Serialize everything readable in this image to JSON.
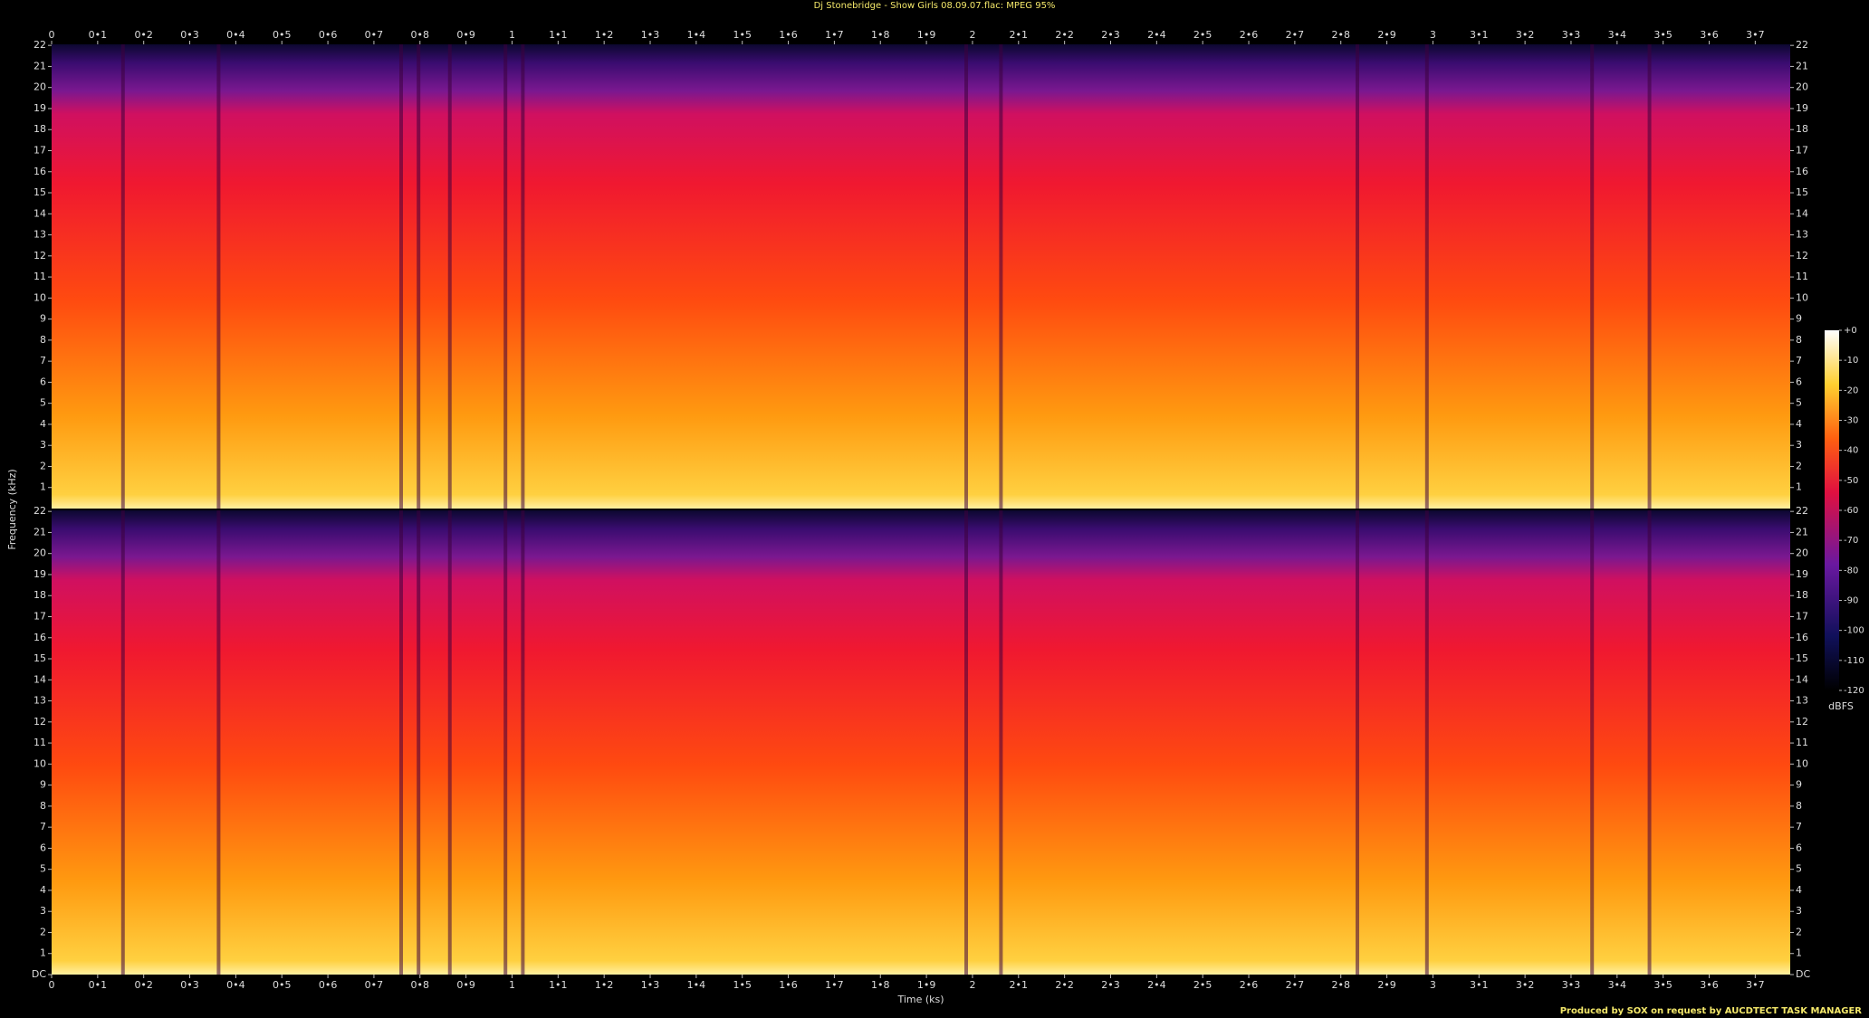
{
  "chart_data": [
    {
      "type": "spectrogram",
      "title": "Dj Stonebridge - Show Girls 08.09.07.flac: MPEG 95%",
      "ylabel": "Frequency (kHz)",
      "xlim": [
        0,
        3.776
      ],
      "ylim": [
        0,
        22.05
      ],
      "xticks": [
        0,
        {
          "value": 0.1,
          "label": "0•1"
        },
        {
          "value": 0.2,
          "label": "0•2"
        },
        {
          "value": 0.3,
          "label": "0•3"
        },
        {
          "value": 0.4,
          "label": "0•4"
        },
        {
          "value": 0.5,
          "label": "0•5"
        },
        {
          "value": 0.6,
          "label": "0•6"
        },
        {
          "value": 0.7,
          "label": "0•7"
        },
        {
          "value": 0.8,
          "label": "0•8"
        },
        {
          "value": 0.9,
          "label": "0•9"
        },
        1,
        {
          "value": 1.1,
          "label": "1•1"
        },
        {
          "value": 1.2,
          "label": "1•2"
        },
        {
          "value": 1.3,
          "label": "1•3"
        },
        {
          "value": 1.4,
          "label": "1•4"
        },
        {
          "value": 1.5,
          "label": "1•5"
        },
        {
          "value": 1.6,
          "label": "1•6"
        },
        {
          "value": 1.7,
          "label": "1•7"
        },
        {
          "value": 1.8,
          "label": "1•8"
        },
        {
          "value": 1.9,
          "label": "1•9"
        },
        2,
        {
          "value": 2.1,
          "label": "2•1"
        },
        {
          "value": 2.2,
          "label": "2•2"
        },
        {
          "value": 2.3,
          "label": "2•3"
        },
        {
          "value": 2.4,
          "label": "2•4"
        },
        {
          "value": 2.5,
          "label": "2•5"
        },
        {
          "value": 2.6,
          "label": "2•6"
        },
        {
          "value": 2.7,
          "label": "2•7"
        },
        {
          "value": 2.8,
          "label": "2•8"
        },
        {
          "value": 2.9,
          "label": "2•9"
        },
        3,
        {
          "value": 3.1,
          "label": "3•1"
        },
        {
          "value": 3.2,
          "label": "3•2"
        },
        {
          "value": 3.3,
          "label": "3•3"
        },
        {
          "value": 3.4,
          "label": "3•4"
        },
        {
          "value": 3.5,
          "label": "3•5"
        },
        {
          "value": 3.6,
          "label": "3•6"
        },
        {
          "value": 3.7,
          "label": "3•7"
        }
      ],
      "yticks": [
        1,
        2,
        3,
        4,
        5,
        6,
        7,
        8,
        9,
        10,
        11,
        12,
        13,
        14,
        15,
        16,
        17,
        18,
        19,
        20,
        21,
        22
      ],
      "colorbar": {
        "label": "dBFS",
        "lim": [
          -120,
          0
        ],
        "ticks": [
          {
            "value": 0,
            "label": "+0"
          },
          -10,
          -20,
          -30,
          -40,
          -50,
          -60,
          -70,
          -80,
          -90,
          -100,
          -110,
          -120
        ]
      }
    },
    {
      "type": "spectrogram",
      "xlabel": "Time (ks)",
      "xlim": [
        0,
        3.776
      ],
      "ylim": [
        0,
        22.05
      ],
      "xticks": [
        0,
        {
          "value": 0.1,
          "label": "0•1"
        },
        {
          "value": 0.2,
          "label": "0•2"
        },
        {
          "value": 0.3,
          "label": "0•3"
        },
        {
          "value": 0.4,
          "label": "0•4"
        },
        {
          "value": 0.5,
          "label": "0•5"
        },
        {
          "value": 0.6,
          "label": "0•6"
        },
        {
          "value": 0.7,
          "label": "0•7"
        },
        {
          "value": 0.8,
          "label": "0•8"
        },
        {
          "value": 0.9,
          "label": "0•9"
        },
        1,
        {
          "value": 1.1,
          "label": "1•1"
        },
        {
          "value": 1.2,
          "label": "1•2"
        },
        {
          "value": 1.3,
          "label": "1•3"
        },
        {
          "value": 1.4,
          "label": "1•4"
        },
        {
          "value": 1.5,
          "label": "1•5"
        },
        {
          "value": 1.6,
          "label": "1•6"
        },
        {
          "value": 1.7,
          "label": "1•7"
        },
        {
          "value": 1.8,
          "label": "1•8"
        },
        {
          "value": 1.9,
          "label": "1•9"
        },
        2,
        {
          "value": 2.1,
          "label": "2•1"
        },
        {
          "value": 2.2,
          "label": "2•2"
        },
        {
          "value": 2.3,
          "label": "2•3"
        },
        {
          "value": 2.4,
          "label": "2•4"
        },
        {
          "value": 2.5,
          "label": "2•5"
        },
        {
          "value": 2.6,
          "label": "2•6"
        },
        {
          "value": 2.7,
          "label": "2•7"
        },
        {
          "value": 2.8,
          "label": "2•8"
        },
        {
          "value": 2.9,
          "label": "2•9"
        },
        3,
        {
          "value": 3.1,
          "label": "3•1"
        },
        {
          "value": 3.2,
          "label": "3•2"
        },
        {
          "value": 3.3,
          "label": "3•3"
        },
        {
          "value": 3.4,
          "label": "3•4"
        },
        {
          "value": 3.5,
          "label": "3•5"
        },
        {
          "value": 3.6,
          "label": "3•6"
        },
        {
          "value": 3.7,
          "label": "3•7"
        }
      ],
      "yticks": [
        {
          "value": 0,
          "label": "DC"
        },
        1,
        2,
        3,
        4,
        5,
        6,
        7,
        8,
        9,
        10,
        11,
        12,
        13,
        14,
        15,
        16,
        17,
        18,
        19,
        20,
        21,
        22
      ]
    }
  ],
  "footer": "Produced by SOX on request by AUCDTECT TASK MANAGER"
}
